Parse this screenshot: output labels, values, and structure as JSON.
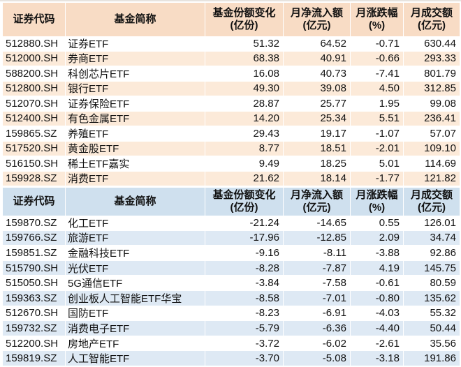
{
  "chart_data": [
    {
      "type": "table",
      "columns": [
        "证券代码",
        "基金简称",
        "基金份额变化(亿份)",
        "月净流入额(亿元)",
        "月涨跌幅(%)",
        "月成交额(亿元)"
      ],
      "rows": [
        [
          "512880.SH",
          "证券ETF",
          51.32,
          64.52,
          -0.71,
          630.44
        ],
        [
          "512000.SH",
          "券商ETF",
          68.38,
          40.91,
          -0.66,
          293.33
        ],
        [
          "588200.SH",
          "科创芯片ETF",
          16.08,
          40.73,
          -7.41,
          801.79
        ],
        [
          "512800.SH",
          "银行ETF",
          49.3,
          39.08,
          4.5,
          312.85
        ],
        [
          "512070.SH",
          "证券保险ETF",
          28.87,
          25.77,
          1.95,
          99.08
        ],
        [
          "512400.SH",
          "有色金属ETF",
          14.2,
          25.34,
          5.51,
          236.41
        ],
        [
          "159865.SZ",
          "养殖ETF",
          29.43,
          19.17,
          -1.07,
          57.07
        ],
        [
          "517520.SH",
          "黄金股ETF",
          8.77,
          18.51,
          -2.01,
          109.1
        ],
        [
          "516150.SH",
          "稀土ETF嘉实",
          9.49,
          18.25,
          5.01,
          114.69
        ],
        [
          "159928.SZ",
          "消费ETF",
          21.62,
          18.14,
          -1.77,
          121.82
        ]
      ]
    },
    {
      "type": "table",
      "columns": [
        "证券代码",
        "基金简称",
        "基金份额变化(亿份)",
        "月净流入额(亿元)",
        "月涨跌幅(%)",
        "月成交额(亿元)"
      ],
      "rows": [
        [
          "159870.SZ",
          "化工ETF",
          -21.24,
          -14.65,
          0.55,
          126.01
        ],
        [
          "159766.SZ",
          "旅游ETF",
          -17.96,
          -12.85,
          2.09,
          34.74
        ],
        [
          "159851.SZ",
          "金融科技ETF",
          -9.16,
          -8.11,
          -3.88,
          92.86
        ],
        [
          "515790.SH",
          "光伏ETF",
          -8.28,
          -7.87,
          4.19,
          145.75
        ],
        [
          "515050.SH",
          "5G通信ETF",
          -3.84,
          -7.58,
          -0.61,
          80.59
        ],
        [
          "159363.SZ",
          "创业板人工智能ETF华宝",
          -8.58,
          -7.01,
          -0.8,
          135.62
        ],
        [
          "512670.SH",
          "国防ETF",
          -8.23,
          -6.91,
          -4.03,
          55.32
        ],
        [
          "159732.SZ",
          "消费电子ETF",
          -5.79,
          -6.36,
          -4.4,
          50.44
        ],
        [
          "512200.SH",
          "房地产ETF",
          -3.72,
          -6.02,
          -2.61,
          35.56
        ],
        [
          "159819.SZ",
          "人工智能ETF",
          -3.7,
          -5.08,
          -3.18,
          191.86
        ]
      ]
    }
  ],
  "tables": [
    {
      "theme": {
        "header_bg": "#f8dcc5",
        "stripe_bg": "#fcead9"
      },
      "headers": {
        "code": "证券代码",
        "name": "基金简称",
        "share_l1": "基金份额变化",
        "share_l2": "(亿份)",
        "inflow_l1": "月净流入额",
        "inflow_l2": "(亿元)",
        "pct_l1": "月涨跌幅",
        "pct_l2": "(%)",
        "turnover_l1": "月成交额",
        "turnover_l2": "(亿元)"
      },
      "rows": [
        {
          "code": "512880.SH",
          "name": "证券ETF",
          "share": "51.32",
          "inflow": "64.52",
          "pct": "-0.71",
          "turnover": "630.44"
        },
        {
          "code": "512000.SH",
          "name": "券商ETF",
          "share": "68.38",
          "inflow": "40.91",
          "pct": "-0.66",
          "turnover": "293.33"
        },
        {
          "code": "588200.SH",
          "name": "科创芯片ETF",
          "share": "16.08",
          "inflow": "40.73",
          "pct": "-7.41",
          "turnover": "801.79"
        },
        {
          "code": "512800.SH",
          "name": "银行ETF",
          "share": "49.30",
          "inflow": "39.08",
          "pct": "4.50",
          "turnover": "312.85"
        },
        {
          "code": "512070.SH",
          "name": "证券保险ETF",
          "share": "28.87",
          "inflow": "25.77",
          "pct": "1.95",
          "turnover": "99.08"
        },
        {
          "code": "512400.SH",
          "name": "有色金属ETF",
          "share": "14.20",
          "inflow": "25.34",
          "pct": "5.51",
          "turnover": "236.41"
        },
        {
          "code": "159865.SZ",
          "name": "养殖ETF",
          "share": "29.43",
          "inflow": "19.17",
          "pct": "-1.07",
          "turnover": "57.07"
        },
        {
          "code": "517520.SH",
          "name": "黄金股ETF",
          "share": "8.77",
          "inflow": "18.51",
          "pct": "-2.01",
          "turnover": "109.10"
        },
        {
          "code": "516150.SH",
          "name": "稀土ETF嘉实",
          "share": "9.49",
          "inflow": "18.25",
          "pct": "5.01",
          "turnover": "114.69"
        },
        {
          "code": "159928.SZ",
          "name": "消费ETF",
          "share": "21.62",
          "inflow": "18.14",
          "pct": "-1.77",
          "turnover": "121.82"
        }
      ]
    },
    {
      "theme": {
        "header_bg": "#cfe0ee",
        "stripe_bg": "#dee9f4"
      },
      "headers": {
        "code": "证券代码",
        "name": "基金简称",
        "share_l1": "基金份额变化",
        "share_l2": "(亿份)",
        "inflow_l1": "月净流入额",
        "inflow_l2": "(亿元)",
        "pct_l1": "月涨跌幅",
        "pct_l2": "(%)",
        "turnover_l1": "月成交额",
        "turnover_l2": "(亿元)"
      },
      "rows": [
        {
          "code": "159870.SZ",
          "name": "化工ETF",
          "share": "-21.24",
          "inflow": "-14.65",
          "pct": "0.55",
          "turnover": "126.01"
        },
        {
          "code": "159766.SZ",
          "name": "旅游ETF",
          "share": "-17.96",
          "inflow": "-12.85",
          "pct": "2.09",
          "turnover": "34.74"
        },
        {
          "code": "159851.SZ",
          "name": "金融科技ETF",
          "share": "-9.16",
          "inflow": "-8.11",
          "pct": "-3.88",
          "turnover": "92.86"
        },
        {
          "code": "515790.SH",
          "name": "光伏ETF",
          "share": "-8.28",
          "inflow": "-7.87",
          "pct": "4.19",
          "turnover": "145.75"
        },
        {
          "code": "515050.SH",
          "name": "5G通信ETF",
          "share": "-3.84",
          "inflow": "-7.58",
          "pct": "-0.61",
          "turnover": "80.59"
        },
        {
          "code": "159363.SZ",
          "name": "创业板人工智能ETF华宝",
          "share": "-8.58",
          "inflow": "-7.01",
          "pct": "-0.80",
          "turnover": "135.62"
        },
        {
          "code": "512670.SH",
          "name": "国防ETF",
          "share": "-8.23",
          "inflow": "-6.91",
          "pct": "-4.03",
          "turnover": "55.32"
        },
        {
          "code": "159732.SZ",
          "name": "消费电子ETF",
          "share": "-5.79",
          "inflow": "-6.36",
          "pct": "-4.40",
          "turnover": "50.44"
        },
        {
          "code": "512200.SH",
          "name": "房地产ETF",
          "share": "-3.72",
          "inflow": "-6.02",
          "pct": "-2.61",
          "turnover": "35.56"
        },
        {
          "code": "159819.SZ",
          "name": "人工智能ETF",
          "share": "-3.70",
          "inflow": "-5.08",
          "pct": "-3.18",
          "turnover": "191.86"
        }
      ]
    }
  ],
  "corner_markers": [
    {
      "table": 0,
      "row": 9,
      "color": "#b43524"
    },
    {
      "table": 1,
      "row": 9,
      "color": "#28486e"
    }
  ]
}
